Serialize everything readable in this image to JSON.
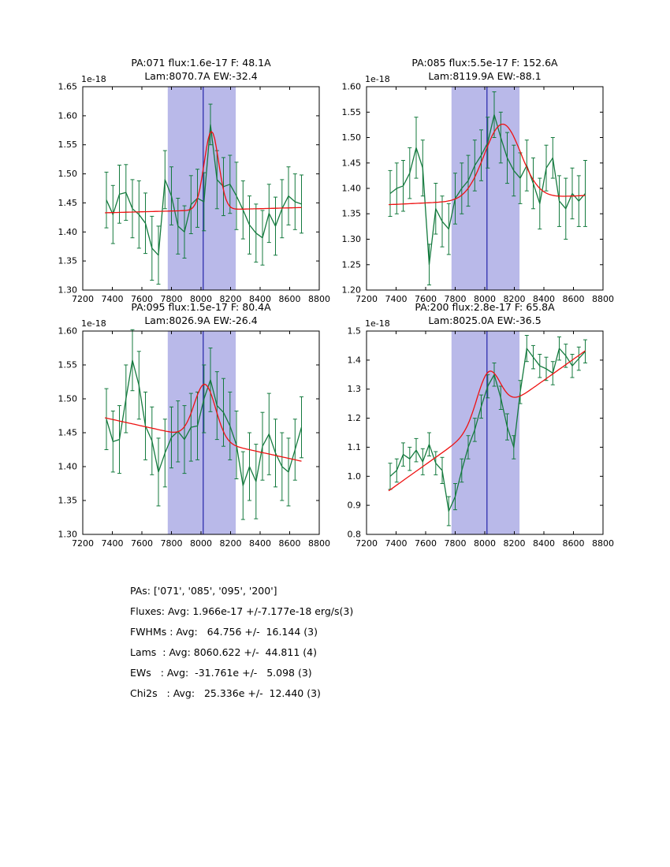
{
  "colors": {
    "background": "#ffffff",
    "band": "#b9b9e9",
    "vline": "#2323a8",
    "data": "#147a3e",
    "fit": "#ee1111",
    "axis": "#000000"
  },
  "summary_lines": [
    "PAs: ['071', '085', '095', '200']",
    "Fluxes: Avg: 1.966e-17 +/-7.177e-18 erg/s(3)",
    "FWHMs : Avg:   64.756 +/-  16.144 (3)",
    "Lams  : Avg: 8060.622 +/-  44.811 (4)",
    "EWs   : Avg:  -31.761e +/-   5.098 (3)",
    "Chi2s   : Avg:   25.336e +/-  12.440 (3)"
  ],
  "chart_data": [
    {
      "type": "line",
      "name": "PA071",
      "title1": "PA:071 flux:1.6e-17 F: 48.1A",
      "title2": "Lam:8070.7A EW:-32.4",
      "offset_text": "1e-18",
      "xlim": [
        7200,
        8800
      ],
      "ylim": [
        1.3,
        1.65
      ],
      "xticks": [
        "7200",
        "7400",
        "7600",
        "7800",
        "8000",
        "8200",
        "8400",
        "8600",
        "8800"
      ],
      "yticks": [
        "1.30",
        "1.35",
        "1.40",
        "1.45",
        "1.50",
        "1.55",
        "1.60",
        "1.65"
      ],
      "band": [
        7775,
        8235
      ],
      "vline": 8015,
      "data": {
        "x": [
          7360,
          7404,
          7448,
          7492,
          7536,
          7580,
          7624,
          7668,
          7712,
          7756,
          7800,
          7844,
          7888,
          7932,
          7976,
          8020,
          8064,
          8108,
          8152,
          8196,
          8240,
          8284,
          8328,
          8372,
          8416,
          8460,
          8504,
          8548,
          8592,
          8636,
          8680
        ],
        "y": [
          1.455,
          1.43,
          1.465,
          1.468,
          1.44,
          1.43,
          1.415,
          1.372,
          1.36,
          1.49,
          1.462,
          1.41,
          1.4,
          1.447,
          1.458,
          1.452,
          1.585,
          1.49,
          1.478,
          1.482,
          1.462,
          1.438,
          1.412,
          1.398,
          1.39,
          1.432,
          1.41,
          1.44,
          1.462,
          1.452,
          1.448
        ],
        "yerr": [
          0.048,
          0.05,
          0.05,
          0.048,
          0.05,
          0.058,
          0.052,
          0.055,
          0.05,
          0.05,
          0.05,
          0.048,
          0.045,
          0.05,
          0.05,
          0.05,
          0.035,
          0.05,
          0.05,
          0.05,
          0.058,
          0.05,
          0.05,
          0.05,
          0.047,
          0.05,
          0.05,
          0.05,
          0.05,
          0.048,
          0.05
        ]
      },
      "fit": {
        "continuum": {
          "x0": 7350,
          "y0": 1.433,
          "x1": 8680,
          "y1": 1.442
        },
        "gauss": {
          "center": 8070.7,
          "amp": 0.135,
          "fwhm": 115
        }
      }
    },
    {
      "type": "line",
      "name": "PA085",
      "title1": "PA:085 flux:5.5e-17 F: 152.6A",
      "title2": "Lam:8119.9A EW:-88.1",
      "offset_text": "1e-18",
      "xlim": [
        7200,
        8800
      ],
      "ylim": [
        1.2,
        1.6
      ],
      "xticks": [
        "7200",
        "7400",
        "7600",
        "7800",
        "8000",
        "8200",
        "8400",
        "8600",
        "8800"
      ],
      "yticks": [
        "1.20",
        "1.25",
        "1.30",
        "1.35",
        "1.40",
        "1.45",
        "1.50",
        "1.55",
        "1.60"
      ],
      "band": [
        7775,
        8235
      ],
      "vline": 8015,
      "data": {
        "x": [
          7360,
          7404,
          7448,
          7492,
          7536,
          7580,
          7624,
          7668,
          7712,
          7756,
          7800,
          7844,
          7888,
          7932,
          7976,
          8020,
          8064,
          8108,
          8152,
          8196,
          8240,
          8284,
          8328,
          8372,
          8416,
          8460,
          8504,
          8548,
          8592,
          8636,
          8680
        ],
        "y": [
          1.39,
          1.4,
          1.405,
          1.43,
          1.48,
          1.44,
          1.25,
          1.36,
          1.335,
          1.32,
          1.38,
          1.4,
          1.415,
          1.445,
          1.465,
          1.49,
          1.545,
          1.5,
          1.46,
          1.435,
          1.42,
          1.445,
          1.41,
          1.37,
          1.44,
          1.46,
          1.375,
          1.36,
          1.39,
          1.375,
          1.39
        ],
        "yerr": [
          0.045,
          0.05,
          0.05,
          0.05,
          0.06,
          0.055,
          0.04,
          0.05,
          0.05,
          0.05,
          0.05,
          0.05,
          0.05,
          0.05,
          0.05,
          0.05,
          0.045,
          0.05,
          0.05,
          0.05,
          0.05,
          0.05,
          0.05,
          0.05,
          0.045,
          0.04,
          0.05,
          0.06,
          0.05,
          0.05,
          0.065
        ]
      },
      "fit": {
        "continuum": {
          "x0": 7350,
          "y0": 1.368,
          "x1": 8680,
          "y1": 1.386
        },
        "gauss": {
          "center": 8119.9,
          "amp": 0.148,
          "fwhm": 290
        }
      }
    },
    {
      "type": "line",
      "name": "PA095",
      "title1": "PA:095 flux:1.5e-17 F: 80.4A",
      "title2": "Lam:8026.9A EW:-26.4",
      "offset_text": "1e-18",
      "xlim": [
        7200,
        8800
      ],
      "ylim": [
        1.3,
        1.6
      ],
      "xticks": [
        "7200",
        "7400",
        "7600",
        "7800",
        "8000",
        "8200",
        "8400",
        "8600",
        "8800"
      ],
      "yticks": [
        "1.30",
        "1.35",
        "1.40",
        "1.45",
        "1.50",
        "1.55",
        "1.60"
      ],
      "band": [
        7775,
        8235
      ],
      "vline": 8015,
      "data": {
        "x": [
          7360,
          7404,
          7448,
          7492,
          7536,
          7580,
          7624,
          7668,
          7712,
          7756,
          7800,
          7844,
          7888,
          7932,
          7976,
          8020,
          8064,
          8108,
          8152,
          8196,
          8240,
          8284,
          8328,
          8372,
          8416,
          8460,
          8504,
          8548,
          8592,
          8636,
          8680
        ],
        "y": [
          1.47,
          1.437,
          1.44,
          1.5,
          1.557,
          1.52,
          1.46,
          1.438,
          1.392,
          1.42,
          1.443,
          1.452,
          1.44,
          1.458,
          1.46,
          1.5,
          1.528,
          1.49,
          1.48,
          1.46,
          1.432,
          1.372,
          1.4,
          1.378,
          1.43,
          1.448,
          1.42,
          1.4,
          1.392,
          1.425,
          1.458
        ],
        "yerr": [
          0.045,
          0.045,
          0.05,
          0.05,
          0.045,
          0.05,
          0.05,
          0.05,
          0.05,
          0.05,
          0.045,
          0.045,
          0.05,
          0.05,
          0.05,
          0.05,
          0.047,
          0.05,
          0.05,
          0.05,
          0.05,
          0.05,
          0.05,
          0.055,
          0.05,
          0.06,
          0.05,
          0.05,
          0.05,
          0.045,
          0.045
        ]
      },
      "fit": {
        "continuum": {
          "x0": 7350,
          "y0": 1.472,
          "x1": 8680,
          "y1": 1.408
        },
        "gauss": {
          "center": 8026.9,
          "amp": 0.082,
          "fwhm": 170
        }
      }
    },
    {
      "type": "line",
      "name": "PA200",
      "title1": "PA:200 flux:2.8e-17 F: 65.8A",
      "title2": "Lam:8025.0A EW:-36.5",
      "offset_text": "1e-18",
      "xlim": [
        7200,
        8800
      ],
      "ylim": [
        0.8,
        1.5
      ],
      "xticks": [
        "7200",
        "7400",
        "7600",
        "7800",
        "8000",
        "8200",
        "8400",
        "8600",
        "8800"
      ],
      "yticks": [
        "0.8",
        "0.9",
        "1.0",
        "1.1",
        "1.2",
        "1.3",
        "1.4",
        "1.5"
      ],
      "band": [
        7775,
        8235
      ],
      "vline": 8015,
      "data": {
        "x": [
          7360,
          7404,
          7448,
          7492,
          7536,
          7580,
          7624,
          7668,
          7712,
          7756,
          7800,
          7844,
          7888,
          7932,
          7976,
          8020,
          8064,
          8108,
          8152,
          8196,
          8240,
          8284,
          8328,
          8372,
          8416,
          8460,
          8504,
          8548,
          8592,
          8636,
          8680
        ],
        "y": [
          1.0,
          1.02,
          1.075,
          1.06,
          1.09,
          1.05,
          1.11,
          1.045,
          1.02,
          0.88,
          0.93,
          1.02,
          1.1,
          1.16,
          1.24,
          1.31,
          1.35,
          1.27,
          1.17,
          1.1,
          1.29,
          1.44,
          1.41,
          1.38,
          1.37,
          1.355,
          1.44,
          1.415,
          1.38,
          1.405,
          1.43
        ],
        "yerr": [
          0.045,
          0.04,
          0.04,
          0.04,
          0.04,
          0.045,
          0.04,
          0.04,
          0.045,
          0.05,
          0.045,
          0.04,
          0.04,
          0.04,
          0.04,
          0.04,
          0.04,
          0.04,
          0.045,
          0.04,
          0.04,
          0.045,
          0.04,
          0.04,
          0.04,
          0.04,
          0.04,
          0.04,
          0.04,
          0.04,
          0.04
        ]
      },
      "fit": {
        "continuum": {
          "x0": 7350,
          "y0": 0.95,
          "x1": 8680,
          "y1": 1.432
        },
        "gauss": {
          "center": 8025.0,
          "amp": 0.165,
          "fwhm": 185
        }
      }
    }
  ]
}
